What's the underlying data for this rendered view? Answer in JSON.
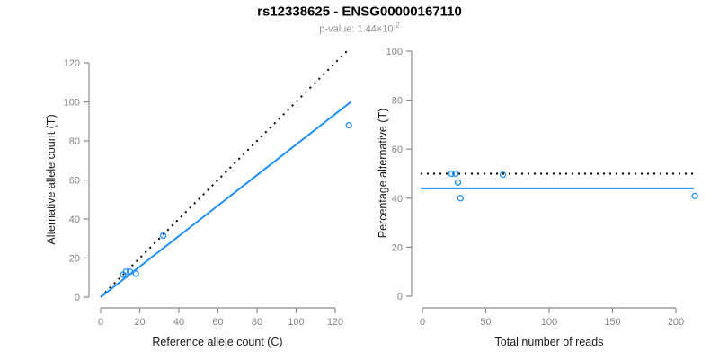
{
  "header": {
    "title": "rs12338625 - ENSG00000167110",
    "subtitle_prefix": "p-value: 1.44×10",
    "subtitle_exponent": "-2"
  },
  "colors": {
    "accent_blue": "#1E90FF",
    "identity_line_black": "#000000",
    "axis_gray": "#8c8c8c",
    "tick_label_gray": "#838383",
    "subtitle_gray": "#919191"
  },
  "chart_data": [
    {
      "type": "scatter",
      "panel": "left",
      "xlabel": "Reference allele count (C)",
      "ylabel": "Alternative allele count (T)",
      "xlim": [
        0,
        127
      ],
      "ylim": [
        0,
        127
      ],
      "xticks": [
        0,
        20,
        40,
        60,
        80,
        100,
        120
      ],
      "yticks": [
        0,
        20,
        40,
        60,
        80,
        100,
        120
      ],
      "grid": false,
      "points": [
        [
          11.5,
          11.5
        ],
        [
          13,
          13
        ],
        [
          15,
          13
        ],
        [
          18,
          12
        ],
        [
          32,
          31.5
        ],
        [
          127,
          88
        ]
      ],
      "lines": [
        {
          "name": "identity",
          "style": "dotted",
          "color": "#000000",
          "from": [
            0,
            0
          ],
          "to": [
            127,
            127
          ]
        },
        {
          "name": "fit",
          "style": "solid",
          "color": "#1E90FF",
          "from": [
            0,
            0
          ],
          "to": [
            128,
            100
          ]
        }
      ]
    },
    {
      "type": "scatter",
      "panel": "right",
      "xlabel": "Total number of reads",
      "ylabel": "Percentage alternative (T)",
      "xlim": [
        0,
        215
      ],
      "ylim": [
        0,
        100
      ],
      "xticks": [
        0,
        50,
        100,
        150,
        200
      ],
      "yticks": [
        0,
        20,
        40,
        60,
        80,
        100
      ],
      "grid": false,
      "points": [
        [
          23,
          50
        ],
        [
          26,
          50
        ],
        [
          28,
          46.4
        ],
        [
          30,
          40
        ],
        [
          63.5,
          49.6
        ],
        [
          215,
          40.9
        ]
      ],
      "lines": [
        {
          "name": "expected-50pct",
          "style": "dotted",
          "color": "#000000",
          "y": 50
        },
        {
          "name": "observed-mean",
          "style": "solid",
          "color": "#1E90FF",
          "y": 44
        }
      ]
    }
  ]
}
